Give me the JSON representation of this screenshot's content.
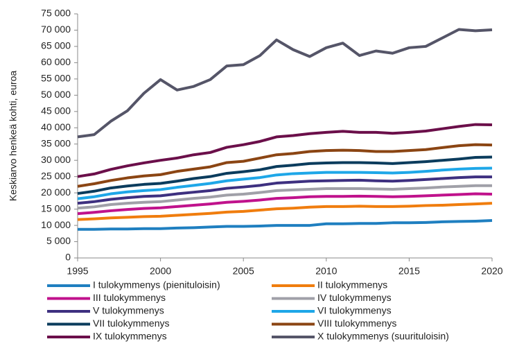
{
  "chart_data": {
    "type": "line",
    "ylabel": "Keskiarvo henkeä kohti, euroa",
    "x": [
      1995,
      1996,
      1997,
      1998,
      1999,
      2000,
      2001,
      2002,
      2003,
      2004,
      2005,
      2006,
      2007,
      2008,
      2009,
      2010,
      2011,
      2012,
      2013,
      2014,
      2015,
      2016,
      2017,
      2018,
      2019,
      2020
    ],
    "xlim": [
      1995,
      2020
    ],
    "xticks": [
      1995,
      2000,
      2005,
      2010,
      2015,
      2020
    ],
    "ylim": [
      0,
      75000
    ],
    "yticks": [
      0,
      {
        "value": 5000,
        "label": "5 000"
      },
      {
        "value": 10000,
        "label": "10 000"
      },
      {
        "value": 15000,
        "label": "15 000"
      },
      {
        "value": 20000,
        "label": "20 000"
      },
      {
        "value": 25000,
        "label": "25 000"
      },
      {
        "value": 30000,
        "label": "30 000"
      },
      {
        "value": 35000,
        "label": "35 000"
      },
      {
        "value": 40000,
        "label": "40 000"
      },
      {
        "value": 45000,
        "label": "45 000"
      },
      {
        "value": 50000,
        "label": "50 000"
      },
      {
        "value": 55000,
        "label": "55 000"
      },
      {
        "value": 60000,
        "label": "60 000"
      },
      {
        "value": 65000,
        "label": "65 000"
      },
      {
        "value": 70000,
        "label": "70 000"
      },
      {
        "value": 75000,
        "label": "75 000"
      }
    ],
    "grid": false,
    "legend": "bottom",
    "series": [
      {
        "name": "I tulokymmenys (pienituloisin)",
        "color": "#1f7fc0",
        "values": [
          8800,
          8800,
          8900,
          8900,
          9000,
          9000,
          9200,
          9300,
          9500,
          9700,
          9700,
          9800,
          10000,
          10000,
          10000,
          10500,
          10500,
          10600,
          10600,
          10800,
          10800,
          10900,
          11100,
          11200,
          11300,
          11500
        ]
      },
      {
        "name": "II tulokymmenys",
        "color": "#f07d0e",
        "values": [
          11800,
          12000,
          12300,
          12500,
          12700,
          12800,
          13100,
          13400,
          13700,
          14100,
          14300,
          14700,
          15100,
          15300,
          15600,
          15800,
          15800,
          15900,
          15800,
          15800,
          15900,
          16100,
          16200,
          16400,
          16600,
          16800
        ]
      },
      {
        "name": "III tulokymmenys",
        "color": "#c0128c",
        "values": [
          13600,
          14000,
          14500,
          14900,
          15200,
          15400,
          15800,
          16200,
          16600,
          17100,
          17400,
          17800,
          18300,
          18500,
          18800,
          18900,
          18900,
          19000,
          18900,
          18800,
          18900,
          19100,
          19300,
          19500,
          19700,
          19600
        ]
      },
      {
        "name": "IV tulokymmenys",
        "color": "#a0a0a8",
        "values": [
          15300,
          15700,
          16400,
          16800,
          17100,
          17300,
          17800,
          18300,
          18700,
          19300,
          19600,
          20100,
          20700,
          20900,
          21100,
          21300,
          21300,
          21300,
          21200,
          21100,
          21300,
          21500,
          21800,
          22000,
          22200,
          22200
        ]
      },
      {
        "name": "V tulokymmenys",
        "color": "#3e3080",
        "values": [
          16800,
          17300,
          18000,
          18500,
          18900,
          19100,
          19700,
          20200,
          20700,
          21400,
          21800,
          22300,
          23000,
          23300,
          23600,
          23700,
          23800,
          23900,
          23700,
          23600,
          23800,
          24100,
          24400,
          24700,
          24900,
          24900
        ]
      },
      {
        "name": "VI tulokymmenys",
        "color": "#1ea7e8",
        "values": [
          18200,
          18800,
          19700,
          20300,
          20700,
          21000,
          21700,
          22300,
          22900,
          23700,
          24200,
          24700,
          25500,
          25900,
          26100,
          26300,
          26300,
          26300,
          26200,
          26100,
          26300,
          26600,
          27000,
          27300,
          27500,
          27600
        ]
      },
      {
        "name": "VII tulokymmenys",
        "color": "#0b3c5d",
        "values": [
          19800,
          20500,
          21500,
          22100,
          22600,
          22900,
          23600,
          24400,
          25000,
          26000,
          26500,
          27100,
          28100,
          28500,
          29000,
          29200,
          29300,
          29300,
          29200,
          29000,
          29300,
          29600,
          30000,
          30400,
          30900,
          31000
        ]
      },
      {
        "name": "VIII tulokymmenys",
        "color": "#8b4513",
        "values": [
          22000,
          22800,
          23800,
          24600,
          25200,
          25600,
          26600,
          27300,
          28000,
          29300,
          29700,
          30700,
          31700,
          32100,
          32700,
          33000,
          33100,
          33000,
          32700,
          32700,
          33000,
          33300,
          33900,
          34500,
          34800,
          34700
        ]
      },
      {
        "name": "IX tulokymmenys",
        "color": "#6b0f4a",
        "values": [
          25000,
          25800,
          27200,
          28300,
          29200,
          30000,
          30700,
          31700,
          32400,
          34000,
          34800,
          35800,
          37200,
          37600,
          38200,
          38600,
          38900,
          38600,
          38600,
          38300,
          38600,
          39000,
          39700,
          40400,
          41000,
          40900
        ]
      },
      {
        "name": "X tulokymmenys (suurituloisin)",
        "color": "#555568",
        "values": [
          37200,
          37900,
          42000,
          45200,
          50600,
          54800,
          51600,
          52700,
          54800,
          59000,
          59400,
          62200,
          67000,
          64000,
          61900,
          64600,
          66000,
          62200,
          63600,
          62900,
          64600,
          65000,
          67600,
          70200,
          69800,
          70100
        ]
      }
    ]
  }
}
